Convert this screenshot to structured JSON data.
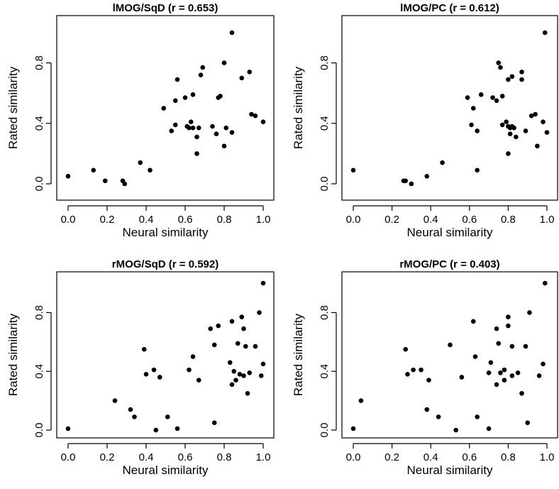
{
  "chart_data": [
    {
      "type": "scatter",
      "title": "lMOG/SqD (r = 0.653)",
      "xlabel": "Neural similarity",
      "ylabel": "Rated similarity",
      "xlim": [
        0,
        1
      ],
      "ylim": [
        0,
        1
      ],
      "xticks": [
        "0.0",
        "0.2",
        "0.4",
        "0.6",
        "0.8",
        "1.0"
      ],
      "yticks": [
        "0.0",
        "0.4",
        "0.8"
      ],
      "points": [
        [
          0.0,
          0.05
        ],
        [
          0.13,
          0.09
        ],
        [
          0.19,
          0.02
        ],
        [
          0.28,
          0.02
        ],
        [
          0.29,
          0.0
        ],
        [
          0.37,
          0.14
        ],
        [
          0.42,
          0.09
        ],
        [
          0.49,
          0.5
        ],
        [
          0.53,
          0.35
        ],
        [
          0.55,
          0.55
        ],
        [
          0.55,
          0.39
        ],
        [
          0.56,
          0.69
        ],
        [
          0.6,
          0.57
        ],
        [
          0.61,
          0.38
        ],
        [
          0.62,
          0.37
        ],
        [
          0.63,
          0.41
        ],
        [
          0.64,
          0.59
        ],
        [
          0.64,
          0.37
        ],
        [
          0.66,
          0.31
        ],
        [
          0.66,
          0.2
        ],
        [
          0.67,
          0.37
        ],
        [
          0.68,
          0.72
        ],
        [
          0.69,
          0.77
        ],
        [
          0.74,
          0.38
        ],
        [
          0.76,
          0.33
        ],
        [
          0.77,
          0.57
        ],
        [
          0.78,
          0.58
        ],
        [
          0.8,
          0.8
        ],
        [
          0.8,
          0.25
        ],
        [
          0.81,
          0.37
        ],
        [
          0.84,
          0.34
        ],
        [
          0.84,
          1.0
        ],
        [
          0.89,
          0.7
        ],
        [
          0.93,
          0.74
        ],
        [
          0.94,
          0.46
        ],
        [
          0.96,
          0.45
        ],
        [
          1.0,
          0.41
        ]
      ]
    },
    {
      "type": "scatter",
      "title": "lMOG/PC (r = 0.612)",
      "xlabel": "Neural similarity",
      "ylabel": "Rated similarity",
      "xlim": [
        0,
        1
      ],
      "ylim": [
        0,
        1
      ],
      "xticks": [
        "0.0",
        "0.2",
        "0.4",
        "0.6",
        "0.8",
        "1.0"
      ],
      "yticks": [
        "0.0",
        "0.4",
        "0.8"
      ],
      "points": [
        [
          0.0,
          0.09
        ],
        [
          0.26,
          0.02
        ],
        [
          0.27,
          0.02
        ],
        [
          0.3,
          0.0
        ],
        [
          0.38,
          0.05
        ],
        [
          0.46,
          0.14
        ],
        [
          0.59,
          0.57
        ],
        [
          0.61,
          0.39
        ],
        [
          0.62,
          0.5
        ],
        [
          0.64,
          0.35
        ],
        [
          0.64,
          0.09
        ],
        [
          0.66,
          0.59
        ],
        [
          0.72,
          0.57
        ],
        [
          0.74,
          0.55
        ],
        [
          0.75,
          0.8
        ],
        [
          0.76,
          0.77
        ],
        [
          0.77,
          0.58
        ],
        [
          0.77,
          0.39
        ],
        [
          0.79,
          0.41
        ],
        [
          0.8,
          0.2
        ],
        [
          0.8,
          0.69
        ],
        [
          0.81,
          0.37
        ],
        [
          0.81,
          0.33
        ],
        [
          0.82,
          0.38
        ],
        [
          0.82,
          0.71
        ],
        [
          0.83,
          0.37
        ],
        [
          0.84,
          0.31
        ],
        [
          0.87,
          0.74
        ],
        [
          0.87,
          0.69
        ],
        [
          0.89,
          0.35
        ],
        [
          0.92,
          0.45
        ],
        [
          0.94,
          0.46
        ],
        [
          0.95,
          0.25
        ],
        [
          0.98,
          0.41
        ],
        [
          0.99,
          1.0
        ],
        [
          1.0,
          0.34
        ],
        [
          0.8,
          0.38
        ]
      ]
    },
    {
      "type": "scatter",
      "title": "rMOG/SqD (r = 0.592)",
      "xlabel": "Neural similarity",
      "ylabel": "Rated similarity",
      "xlim": [
        0,
        1
      ],
      "ylim": [
        0,
        1
      ],
      "xticks": [
        "0.0",
        "0.2",
        "0.4",
        "0.6",
        "0.8",
        "1.0"
      ],
      "yticks": [
        "0.0",
        "0.4",
        "0.8"
      ],
      "points": [
        [
          0.0,
          0.01
        ],
        [
          0.24,
          0.2
        ],
        [
          0.32,
          0.14
        ],
        [
          0.34,
          0.09
        ],
        [
          0.39,
          0.55
        ],
        [
          0.4,
          0.38
        ],
        [
          0.44,
          0.41
        ],
        [
          0.45,
          0.0
        ],
        [
          0.47,
          0.36
        ],
        [
          0.51,
          0.09
        ],
        [
          0.56,
          0.01
        ],
        [
          0.62,
          0.41
        ],
        [
          0.64,
          0.5
        ],
        [
          0.67,
          0.34
        ],
        [
          0.73,
          0.69
        ],
        [
          0.75,
          0.05
        ],
        [
          0.75,
          0.58
        ],
        [
          0.77,
          0.71
        ],
        [
          0.83,
          0.46
        ],
        [
          0.84,
          0.31
        ],
        [
          0.84,
          0.74
        ],
        [
          0.85,
          0.4
        ],
        [
          0.86,
          0.34
        ],
        [
          0.87,
          0.59
        ],
        [
          0.89,
          0.77
        ],
        [
          0.9,
          0.37
        ],
        [
          0.9,
          0.69
        ],
        [
          0.91,
          0.57
        ],
        [
          0.92,
          0.25
        ],
        [
          0.93,
          0.39
        ],
        [
          0.96,
          0.57
        ],
        [
          0.98,
          0.8
        ],
        [
          0.99,
          0.37
        ],
        [
          1.0,
          1.0
        ],
        [
          1.0,
          0.45
        ],
        [
          0.88,
          0.38
        ]
      ]
    },
    {
      "type": "scatter",
      "title": "rMOG/PC (r = 0.403)",
      "xlabel": "Neural similarity",
      "ylabel": "Rated similarity",
      "xlim": [
        0,
        1
      ],
      "ylim": [
        0,
        1
      ],
      "xticks": [
        "0.0",
        "0.2",
        "0.4",
        "0.6",
        "0.8",
        "1.0"
      ],
      "yticks": [
        "0.0",
        "0.4",
        "0.8"
      ],
      "points": [
        [
          0.0,
          0.01
        ],
        [
          0.04,
          0.2
        ],
        [
          0.27,
          0.55
        ],
        [
          0.28,
          0.38
        ],
        [
          0.31,
          0.41
        ],
        [
          0.35,
          0.41
        ],
        [
          0.38,
          0.14
        ],
        [
          0.39,
          0.34
        ],
        [
          0.44,
          0.09
        ],
        [
          0.5,
          0.58
        ],
        [
          0.53,
          0.0
        ],
        [
          0.56,
          0.36
        ],
        [
          0.62,
          0.74
        ],
        [
          0.63,
          0.5
        ],
        [
          0.64,
          0.09
        ],
        [
          0.7,
          0.01
        ],
        [
          0.7,
          0.39
        ],
        [
          0.71,
          0.46
        ],
        [
          0.74,
          0.69
        ],
        [
          0.74,
          0.31
        ],
        [
          0.75,
          0.59
        ],
        [
          0.76,
          0.39
        ],
        [
          0.78,
          0.34
        ],
        [
          0.8,
          0.71
        ],
        [
          0.8,
          0.77
        ],
        [
          0.82,
          0.57
        ],
        [
          0.82,
          0.37
        ],
        [
          0.85,
          0.39
        ],
        [
          0.87,
          0.25
        ],
        [
          0.89,
          0.57
        ],
        [
          0.9,
          0.05
        ],
        [
          0.91,
          0.8
        ],
        [
          0.96,
          0.37
        ],
        [
          0.98,
          0.45
        ],
        [
          0.99,
          1.0
        ],
        [
          0.78,
          0.41
        ]
      ]
    }
  ]
}
